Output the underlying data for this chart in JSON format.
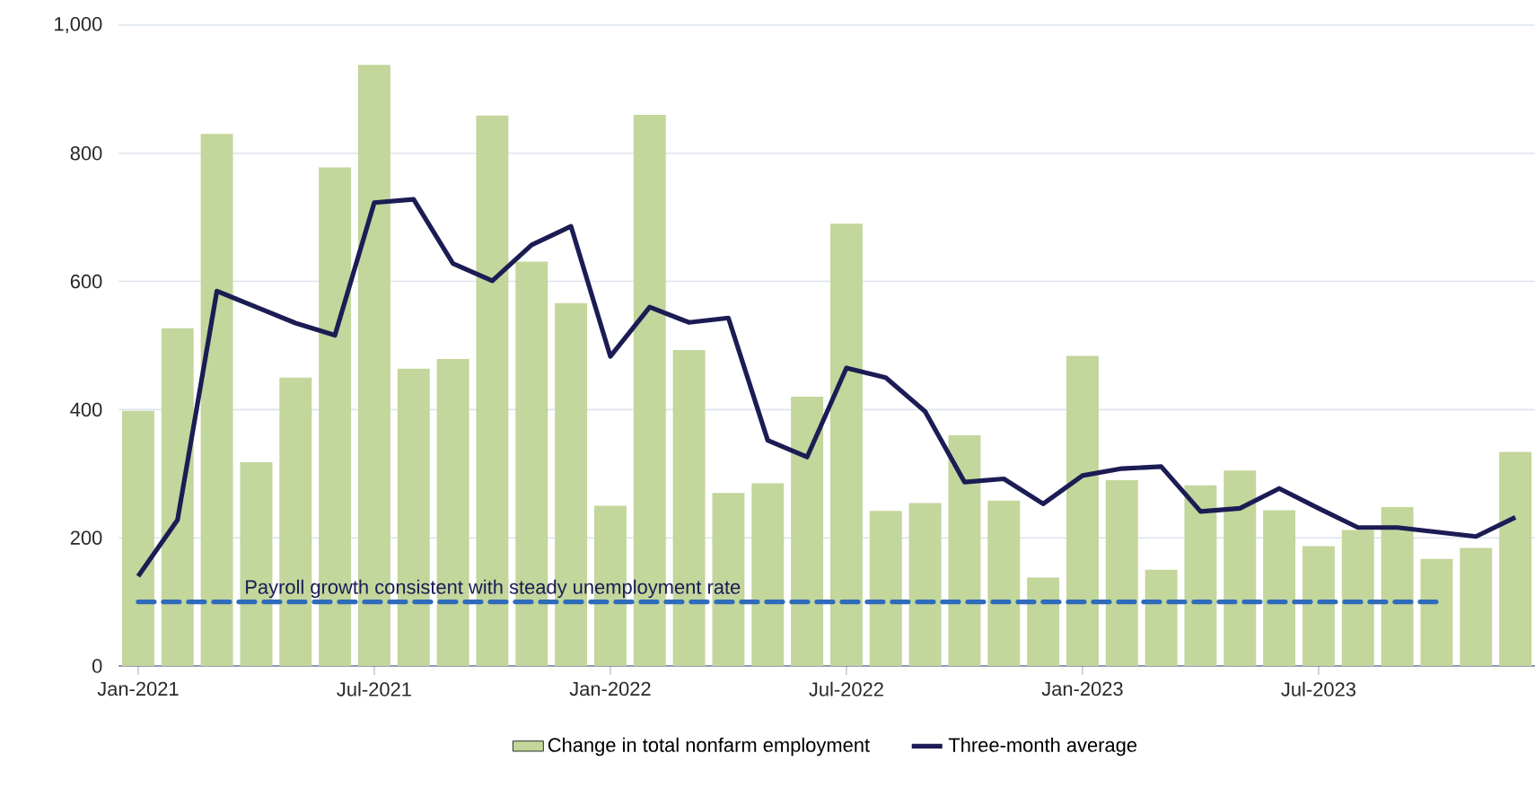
{
  "chart_data": {
    "type": "bar",
    "categories": [
      "Jan-2021",
      null,
      null,
      null,
      null,
      null,
      "Jul-2021",
      null,
      null,
      null,
      null,
      null,
      "Jan-2022",
      null,
      null,
      null,
      null,
      null,
      "Jul-2022",
      null,
      null,
      null,
      null,
      null,
      "Jan-2023",
      null,
      null,
      null,
      null,
      null,
      "Jul-2023",
      null,
      null,
      null,
      null,
      null
    ],
    "series": [
      {
        "name": "Change in total nonfarm employment",
        "color": "#c3d69b",
        "values": [
          398,
          527,
          830,
          318,
          450,
          778,
          938,
          464,
          479,
          859,
          631,
          566,
          250,
          860,
          493,
          270,
          285,
          420,
          690,
          242,
          254,
          360,
          258,
          138,
          484,
          290,
          150,
          282,
          305,
          243,
          187,
          212,
          248,
          167,
          184,
          334
        ]
      },
      {
        "name": "Three-month average",
        "type": "line",
        "color": "#1c1c55",
        "values": [
          140,
          228,
          585,
          560,
          535,
          516,
          723,
          728,
          628,
          601,
          657,
          686,
          483,
          560,
          536,
          543,
          352,
          326,
          465,
          450,
          397,
          287,
          292,
          253,
          297,
          308,
          311,
          241,
          246,
          277,
          246,
          216,
          216,
          209,
          202,
          232
        ]
      }
    ],
    "ref_lines": [
      {
        "axis": "y",
        "value": 100,
        "label": "Payroll growth consistent with steady unemployment rate",
        "color": "#2e6bba",
        "line_style": "dashed"
      }
    ],
    "ylim": [
      0,
      1000
    ],
    "yticks": [
      0,
      200,
      400,
      600,
      800,
      {
        "value": 1000,
        "label": "1,000"
      }
    ],
    "grid": "y",
    "legend": "bottom"
  }
}
